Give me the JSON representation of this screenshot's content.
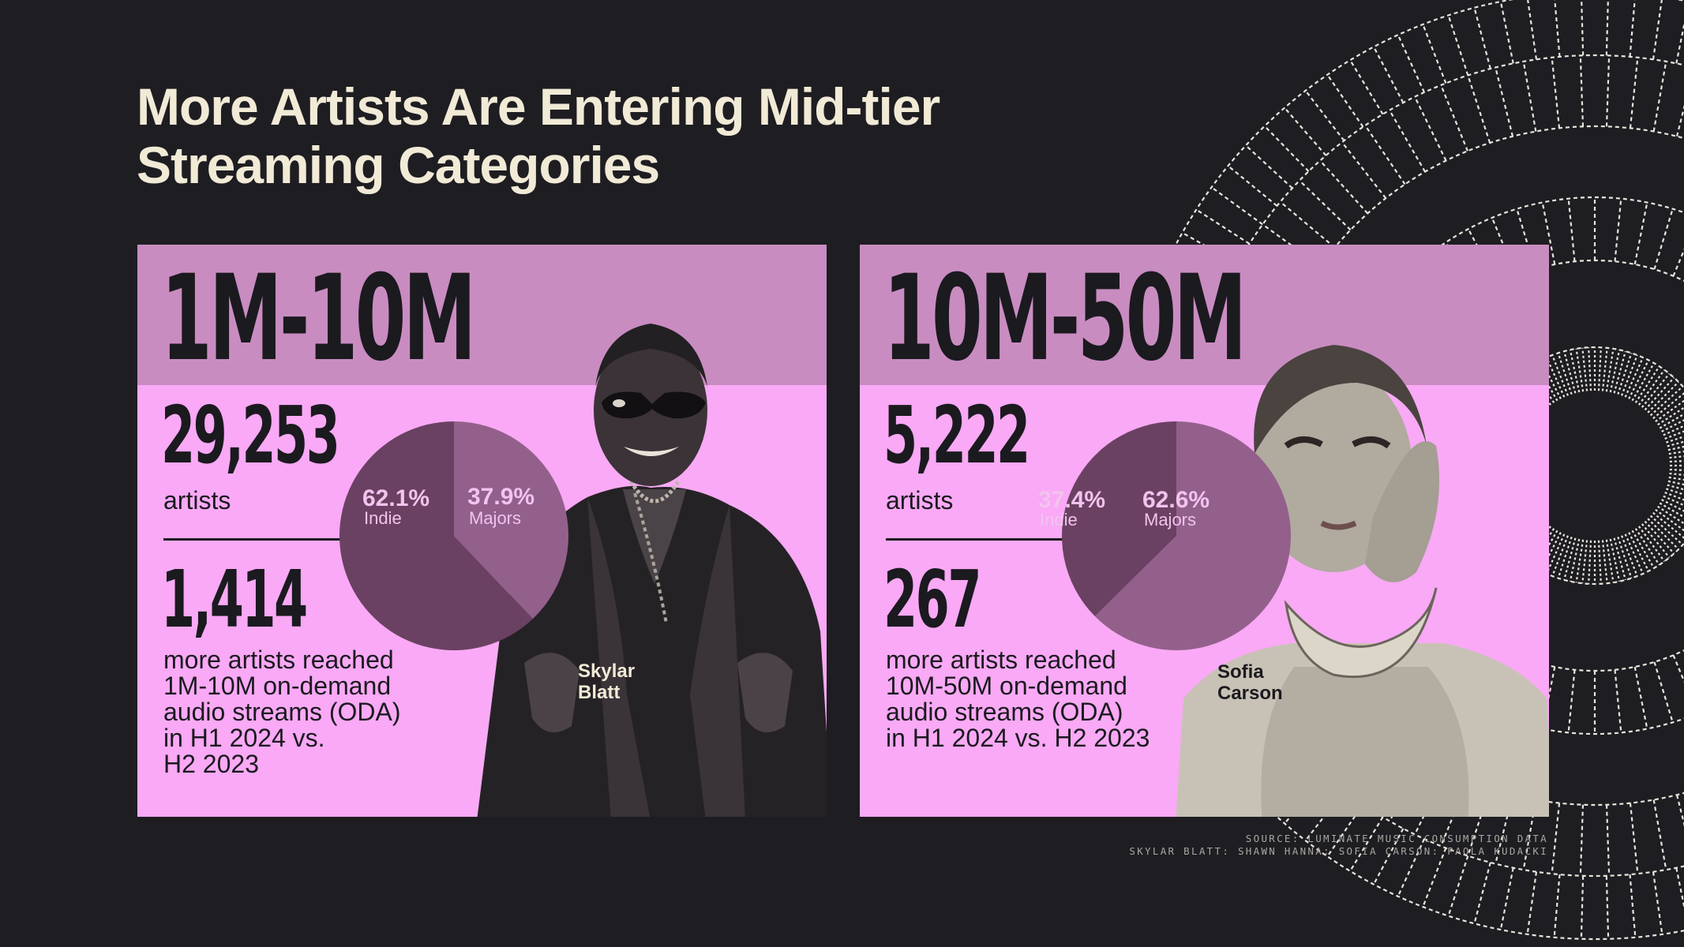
{
  "title": {
    "line1": "More Artists Are Entering Mid-tier",
    "line2": "Streaming Categories"
  },
  "colors": {
    "background": "#1e1d22",
    "panel": "#f9a9f5",
    "band": "#c98cc1",
    "indie": "#6a4162",
    "majors": "#93608b",
    "text_light": "#f1ead6"
  },
  "panels": [
    {
      "range": "1M-10M",
      "artists_count": "29,253",
      "artists_label": "artists",
      "increase": "1,414",
      "description": [
        "more artists reached",
        "1M-10M on-demand",
        "audio streams (ODA)",
        "in H1 2024 vs.",
        "H2 2023"
      ],
      "pie": {
        "indie_pct": "62.1%",
        "indie_label": "Indie",
        "majors_pct": "37.9%",
        "majors_label": "Majors"
      },
      "photo_caption": [
        "Skylar",
        "Blatt"
      ]
    },
    {
      "range": "10M-50M",
      "artists_count": "5,222",
      "artists_label": "artists",
      "increase": "267",
      "description": [
        "more artists reached",
        "10M-50M on-demand",
        "audio streams (ODA)",
        "in H1 2024 vs. H2 2023"
      ],
      "pie": {
        "indie_pct": "37.4%",
        "indie_label": "Indie",
        "majors_pct": "62.6%",
        "majors_label": "Majors"
      },
      "photo_caption": [
        "Sofia",
        "Carson"
      ]
    }
  ],
  "source": {
    "line1": "SOURCE: LUMINATE MUSIC CONSUMPTION DATA",
    "line2": "SKYLAR BLATT: SHAWN HANNA; SOFIA CARSON: PAOLA KUDACKI"
  },
  "chart_data": [
    {
      "type": "pie",
      "title": "1M-10M",
      "categories": [
        "Indie",
        "Majors"
      ],
      "values": [
        62.1,
        37.9
      ]
    },
    {
      "type": "pie",
      "title": "10M-50M",
      "categories": [
        "Indie",
        "Majors"
      ],
      "values": [
        37.4,
        62.6
      ]
    }
  ]
}
